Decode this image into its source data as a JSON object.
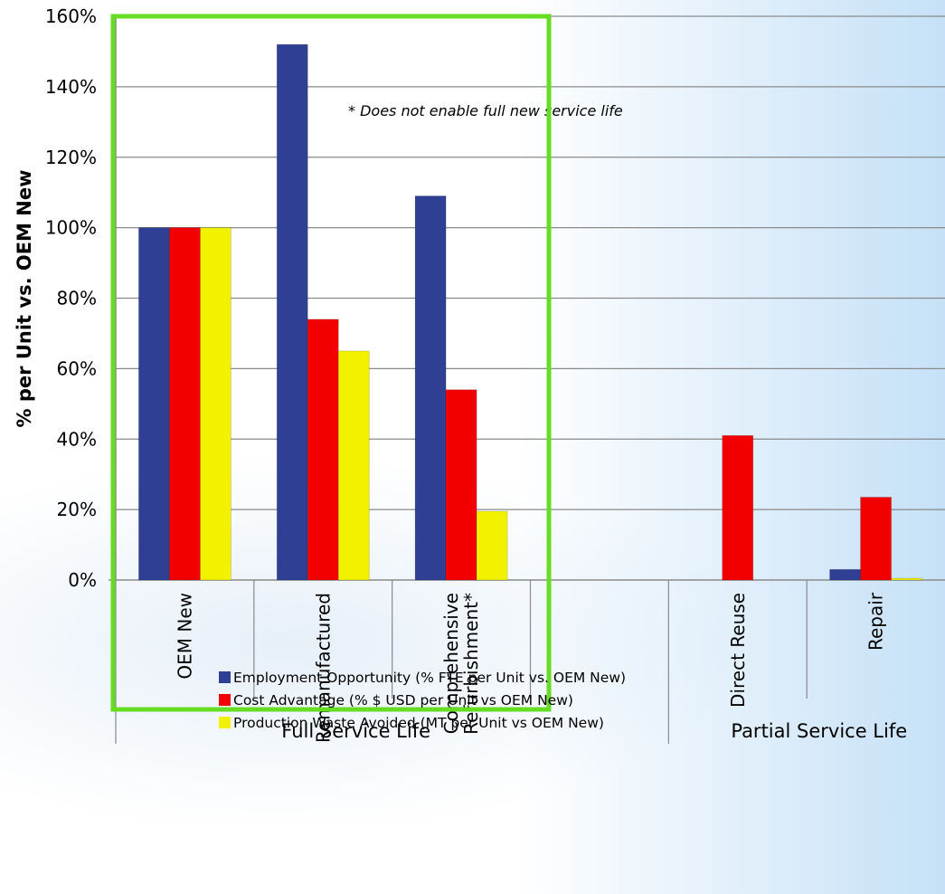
{
  "chart_data": {
    "type": "bar",
    "ylabel": "% per Unit  vs. OEM New",
    "ylim": [
      0,
      160
    ],
    "yticks": [
      "0%",
      "20%",
      "40%",
      "60%",
      "80%",
      "100%",
      "120%",
      "140%",
      "160%"
    ],
    "grid": true,
    "categories": [
      "OEM New",
      "Remanufactured",
      "Comprehensive Refurbishment*",
      "",
      "Direct Reuse",
      "Repair"
    ],
    "category_label_lines": [
      [
        "OEM New"
      ],
      [
        "Remanufactured"
      ],
      [
        "Comprehensive",
        "Refurbishment*"
      ],
      [],
      [
        "Direct Reuse"
      ],
      [
        "Repair"
      ]
    ],
    "groups": [
      {
        "label": "Full Service Life",
        "span": [
          0,
          3
        ]
      },
      {
        "label": "Partial Service Life",
        "span": [
          4,
          5
        ]
      }
    ],
    "series": [
      {
        "name": "Employment Opportunity (% FTE per Unit vs. OEM New)",
        "color": "#2E3F94",
        "values": [
          100,
          152,
          109,
          null,
          0,
          3
        ]
      },
      {
        "name": "Cost Advantage (% $ USD per Unit vs OEM New)",
        "color": "#F20000",
        "values": [
          100,
          74,
          54,
          null,
          41,
          23.5
        ]
      },
      {
        "name": "Production Waste Avoided (MT per Unit vs OEM New)",
        "color": "#F2F200",
        "values": [
          100,
          65,
          19.5,
          null,
          0,
          0.5
        ]
      }
    ],
    "annotation": "* Does not enable full new service life",
    "highlight_color": "#66DD22",
    "legend_position": "bottom"
  }
}
